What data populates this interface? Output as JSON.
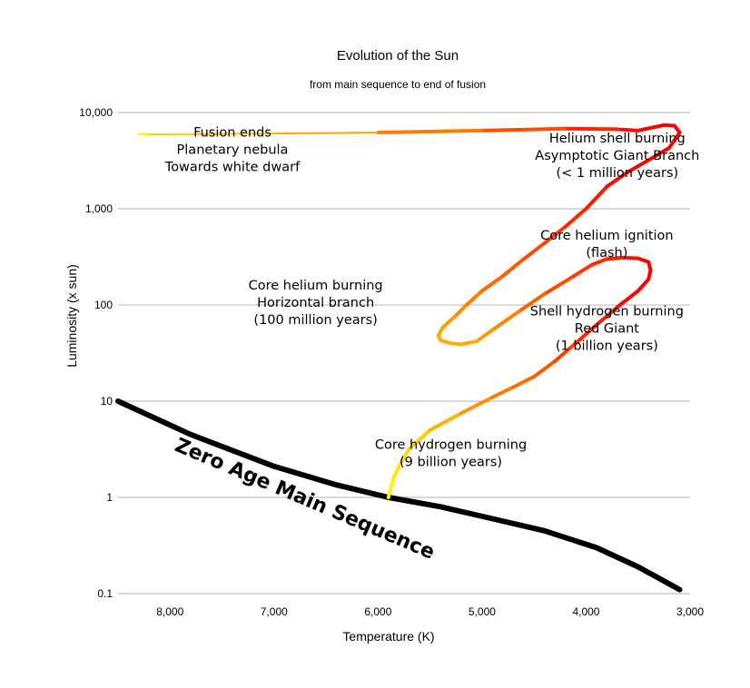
{
  "chart_data": {
    "type": "line",
    "title": "Evolution of the Sun",
    "subtitle": "from main sequence to end of fusion",
    "xlabel": "Temperature (K)",
    "ylabel": "Luminosity (x sun)",
    "x_reversed": true,
    "y_scale": "log",
    "xlim": [
      8500,
      3000
    ],
    "ylim": [
      0.1,
      10000
    ],
    "x_ticks": [
      {
        "value": 8000,
        "label": "8,000"
      },
      {
        "value": 7000,
        "label": "7,000"
      },
      {
        "value": 6000,
        "label": "6,000"
      },
      {
        "value": 5000,
        "label": "5,000"
      },
      {
        "value": 4000,
        "label": "4,000"
      },
      {
        "value": 3000,
        "label": "3,000"
      }
    ],
    "y_ticks": [
      {
        "value": 10000,
        "label": "10,000"
      },
      {
        "value": 1000,
        "label": "1,000"
      },
      {
        "value": 100,
        "label": "100"
      },
      {
        "value": 10,
        "label": "10"
      },
      {
        "value": 1,
        "label": "1"
      },
      {
        "value": 0.1,
        "label": "0.1"
      }
    ],
    "grid": "horizontal",
    "series": [
      {
        "name": "Zero Age Main Sequence",
        "color": "#000000",
        "points": [
          [
            8500,
            10
          ],
          [
            7800,
            4.5
          ],
          [
            7000,
            2.1
          ],
          [
            6400,
            1.35
          ],
          [
            5900,
            1.0
          ],
          [
            5400,
            0.8
          ],
          [
            4900,
            0.6
          ],
          [
            4400,
            0.45
          ],
          [
            3900,
            0.3
          ],
          [
            3500,
            0.19
          ],
          [
            3100,
            0.11
          ]
        ]
      },
      {
        "name": "",
        "color_gradient": [
          "#ffff00",
          "#ffa500",
          "#ff0000"
        ],
        "points": [
          [
            5900,
            1.0,
            0.0
          ],
          [
            5850,
            1.6,
            0.1
          ],
          [
            5780,
            2.3,
            0.15
          ],
          [
            5700,
            3.2,
            0.22
          ],
          [
            5500,
            5.0,
            0.35
          ],
          [
            5200,
            7.5,
            0.5
          ],
          [
            4900,
            11,
            0.6
          ],
          [
            4700,
            14,
            0.65
          ],
          [
            4500,
            18,
            0.7
          ],
          [
            4300,
            26,
            0.78
          ],
          [
            4100,
            40,
            0.85
          ],
          [
            3900,
            62,
            0.9
          ],
          [
            3700,
            95,
            0.95
          ],
          [
            3500,
            140,
            1.0
          ],
          [
            3400,
            185,
            1.0
          ],
          [
            3380,
            230,
            1.0
          ],
          [
            3400,
            280,
            1.0
          ],
          [
            3500,
            305,
            1.0
          ],
          [
            3650,
            310,
            0.95
          ],
          [
            3800,
            300,
            0.9
          ],
          [
            3950,
            260,
            0.85
          ],
          [
            4150,
            190,
            0.8
          ],
          [
            4400,
            130,
            0.75
          ],
          [
            4650,
            85,
            0.65
          ],
          [
            4900,
            55,
            0.55
          ],
          [
            5050,
            42,
            0.5
          ],
          [
            5200,
            39,
            0.45
          ],
          [
            5300,
            40,
            0.45
          ],
          [
            5400,
            43,
            0.45
          ],
          [
            5420,
            48,
            0.47
          ],
          [
            5380,
            58,
            0.5
          ],
          [
            5250,
            78,
            0.55
          ],
          [
            5150,
            100,
            0.6
          ],
          [
            5000,
            140,
            0.65
          ],
          [
            4800,
            200,
            0.7
          ],
          [
            4600,
            300,
            0.75
          ],
          [
            4400,
            440,
            0.8
          ],
          [
            4200,
            650,
            0.85
          ],
          [
            4000,
            1000,
            0.9
          ],
          [
            3800,
            1700,
            0.95
          ],
          [
            3600,
            2400,
            1.0
          ],
          [
            3400,
            3200,
            1.0
          ],
          [
            3200,
            4300,
            1.0
          ],
          [
            3100,
            6200,
            1.0
          ],
          [
            3150,
            7300,
            1.0
          ],
          [
            3250,
            7400,
            1.0
          ],
          [
            3500,
            6500,
            1.0
          ],
          [
            3700,
            6700,
            0.95
          ],
          [
            4200,
            6800,
            0.85
          ],
          [
            5000,
            6500,
            0.7
          ],
          [
            6000,
            6200,
            0.55
          ],
          [
            7000,
            6050,
            0.42
          ],
          [
            7800,
            5950,
            0.3
          ],
          [
            8200,
            5930,
            0.2
          ],
          [
            8300,
            5980,
            0.1
          ],
          [
            8200,
            6000,
            0.05
          ]
        ]
      }
    ],
    "annotations": [
      {
        "id": "fusion-ends",
        "lines": [
          "Fusion ends",
          "Planetary nebula",
          "Towards white dwarf"
        ],
        "x": 7400,
        "y": 5600
      },
      {
        "id": "helium-shell",
        "lines": [
          "Helium shell burning",
          "Asymptotic Giant Branch",
          "(< 1 million years)"
        ],
        "x": 3700,
        "y": 4900
      },
      {
        "id": "core-helium-ignition",
        "lines": [
          "Core helium ignition",
          "(flash)"
        ],
        "x": 3800,
        "y": 480
      },
      {
        "id": "core-helium-burning",
        "lines": [
          "Core helium burning",
          "Horizontal branch",
          "(100 million years)"
        ],
        "x": 6600,
        "y": 145
      },
      {
        "id": "shell-hydrogen",
        "lines": [
          "Shell hydrogen burning",
          "Red Giant",
          "(1 billion years)"
        ],
        "x": 3800,
        "y": 78
      },
      {
        "id": "core-hydrogen",
        "lines": [
          "Core hydrogen burning",
          "(9 billion years)"
        ],
        "x": 5300,
        "y": 3.2
      }
    ],
    "zams_label": "Zero Age Main Sequence"
  }
}
